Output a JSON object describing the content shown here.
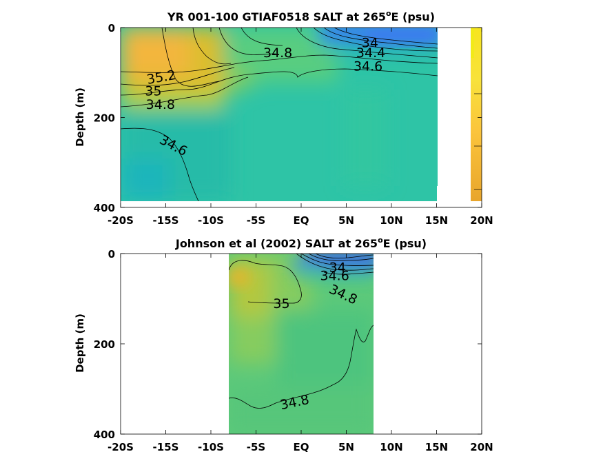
{
  "chart_data": [
    {
      "type": "heatmap",
      "title": "YR 001-100 GTIAF0518 SALT at 265",
      "title_sup": "o",
      "title_end": "E (psu)",
      "ylabel": "Depth (m)",
      "xlim": [
        -20,
        20
      ],
      "ylim": [
        0,
        400
      ],
      "y_reversed": true,
      "xticks": [
        -20,
        -15,
        -10,
        -5,
        0,
        5,
        10,
        15,
        20
      ],
      "xtick_labels": [
        "-20S",
        "-15S",
        "-10S",
        "-5S",
        "EQ",
        "5N",
        "10N",
        "15N",
        "20N"
      ],
      "yticks": [
        0,
        200,
        400
      ],
      "ytick_labels": [
        "0",
        "200",
        "400"
      ],
      "data_extent_x": [
        -20,
        15.5
      ],
      "contour_labels": [
        {
          "text": "34",
          "x": 6.7,
          "y": 33
        },
        {
          "text": "34.4",
          "x": 6.1,
          "y": 55
        },
        {
          "text": "34.8",
          "x": -4.2,
          "y": 55
        },
        {
          "text": "34.6",
          "x": 5.8,
          "y": 85
        },
        {
          "text": "35.2",
          "x": -17,
          "y": 115
        },
        {
          "text": "35",
          "x": -17.3,
          "y": 140
        },
        {
          "text": "34.8",
          "x": -17.2,
          "y": 170
        },
        {
          "text": "34.6",
          "x": -15.8,
          "y": 245
        }
      ],
      "colorbar_labels": []
    },
    {
      "type": "heatmap",
      "title": "Johnson et al (2002) SALT at 265",
      "title_sup": "o",
      "title_end": "E (psu)",
      "ylabel": "Depth (m)",
      "xlim": [
        -20,
        20
      ],
      "ylim": [
        0,
        400
      ],
      "y_reversed": true,
      "xticks": [
        -20,
        -15,
        -10,
        -5,
        0,
        5,
        10,
        15,
        20
      ],
      "xtick_labels": [
        "-20S",
        "-15S",
        "-10S",
        "-5S",
        "EQ",
        "5N",
        "10N",
        "15N",
        "20N"
      ],
      "yticks": [
        0,
        200,
        400
      ],
      "ytick_labels": [
        "0",
        "200",
        "400"
      ],
      "data_extent_x": [
        -8,
        8
      ],
      "contour_labels": [
        {
          "text": "34",
          "x": 3.1,
          "y": 30
        },
        {
          "text": "34.6",
          "x": 2.1,
          "y": 48
        },
        {
          "text": "34.8",
          "x": 3,
          "y": 75
        },
        {
          "text": "35",
          "x": -3.1,
          "y": 110
        },
        {
          "text": "34.8",
          "x": -2.2,
          "y": 335
        }
      ]
    }
  ]
}
